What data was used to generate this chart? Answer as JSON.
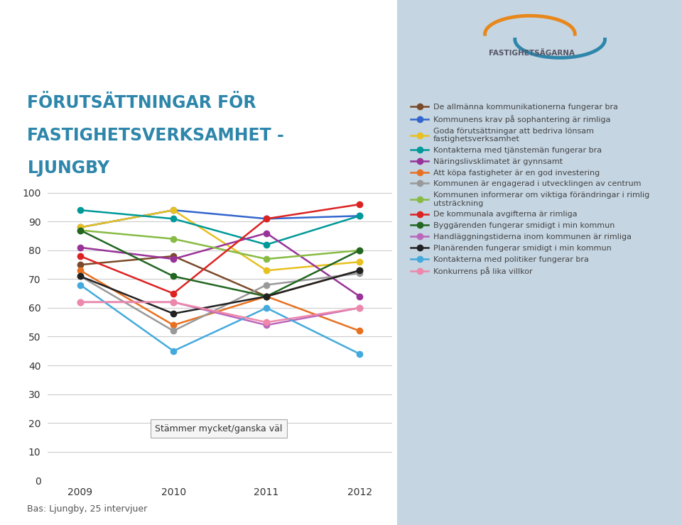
{
  "title_line1": "FÖRUTSÄTTNINGAR FÖR",
  "title_line2": "FASTIGHETSVERKSAMHET -",
  "title_line3": "LJUNGBY",
  "title_color": "#2E86AB",
  "bg_left": "#ffffff",
  "bg_right": "#c5d5e2",
  "years": [
    2009,
    2010,
    2011,
    2012
  ],
  "ylim": [
    0,
    105
  ],
  "yticks": [
    0,
    10,
    20,
    30,
    40,
    50,
    60,
    70,
    80,
    90,
    100
  ],
  "footnote": "Bas: Ljungby, 25 intervjuer",
  "box_label": "Stämmer mycket/ganska väl",
  "series": [
    {
      "label": "De allmänna kommunikationerna fungerar bra",
      "color": "#7B4A2A",
      "values": [
        75,
        78,
        64,
        73
      ]
    },
    {
      "label": "Kommunens krav på sophantering är rimliga",
      "color": "#3366CC",
      "values": [
        88,
        94,
        91,
        92
      ]
    },
    {
      "label": "Goda förutsättningar att bedriva lönsam\nfastighetsverksamhet",
      "color": "#E8C020",
      "values": [
        88,
        94,
        73,
        76
      ]
    },
    {
      "label": "Kontakterna med tjänstemän fungerar bra",
      "color": "#009999",
      "values": [
        94,
        91,
        82,
        92
      ]
    },
    {
      "label": "Näringslivsklimatet är gynnsamt",
      "color": "#993399",
      "values": [
        81,
        77,
        86,
        64
      ]
    },
    {
      "label": "Att köpa fastigheter är en god investering",
      "color": "#E87020",
      "values": [
        73,
        54,
        64,
        52
      ]
    },
    {
      "label": "Kommunen är engagerad i utvecklingen av centrum",
      "color": "#999999",
      "values": [
        71,
        52,
        68,
        72
      ]
    },
    {
      "label": "Kommunen informerar om viktiga förändringar i rimlig\nutsträckning",
      "color": "#88BB44",
      "values": [
        87,
        84,
        77,
        80
      ]
    },
    {
      "label": "De kommunala avgifterna är rimliga",
      "color": "#DD2222",
      "values": [
        78,
        65,
        91,
        96
      ]
    },
    {
      "label": "Byggärenden fungerar smidigt i min kommun",
      "color": "#226622",
      "values": [
        87,
        71,
        64,
        80
      ]
    },
    {
      "label": "Handläggningstiderna inom kommunen är rimliga",
      "color": "#BB66BB",
      "values": [
        62,
        62,
        54,
        60
      ]
    },
    {
      "label": "Planärenden fungerar smidigt i min kommun",
      "color": "#222222",
      "values": [
        71,
        58,
        64,
        73
      ]
    },
    {
      "label": "Kontakterna med politiker fungerar bra",
      "color": "#44AADD",
      "values": [
        68,
        45,
        60,
        44
      ]
    },
    {
      "label": "Konkurrens på lika villkor",
      "color": "#EE88AA",
      "values": [
        62,
        62,
        55,
        60
      ]
    }
  ]
}
